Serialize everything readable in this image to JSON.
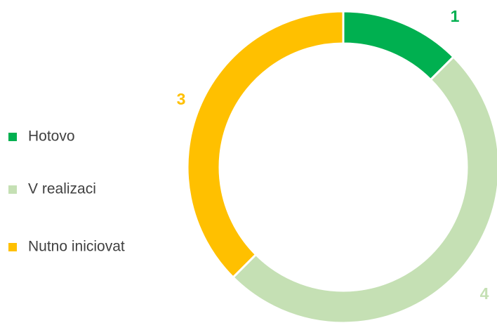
{
  "chart_data": {
    "type": "donut",
    "categories": [
      "Hotovo",
      "V realizaci",
      "Nutno iniciovat"
    ],
    "values": [
      1,
      4,
      3
    ],
    "colors": [
      "#00b050",
      "#c5e0b4",
      "#ffc000"
    ],
    "legend": "left"
  }
}
